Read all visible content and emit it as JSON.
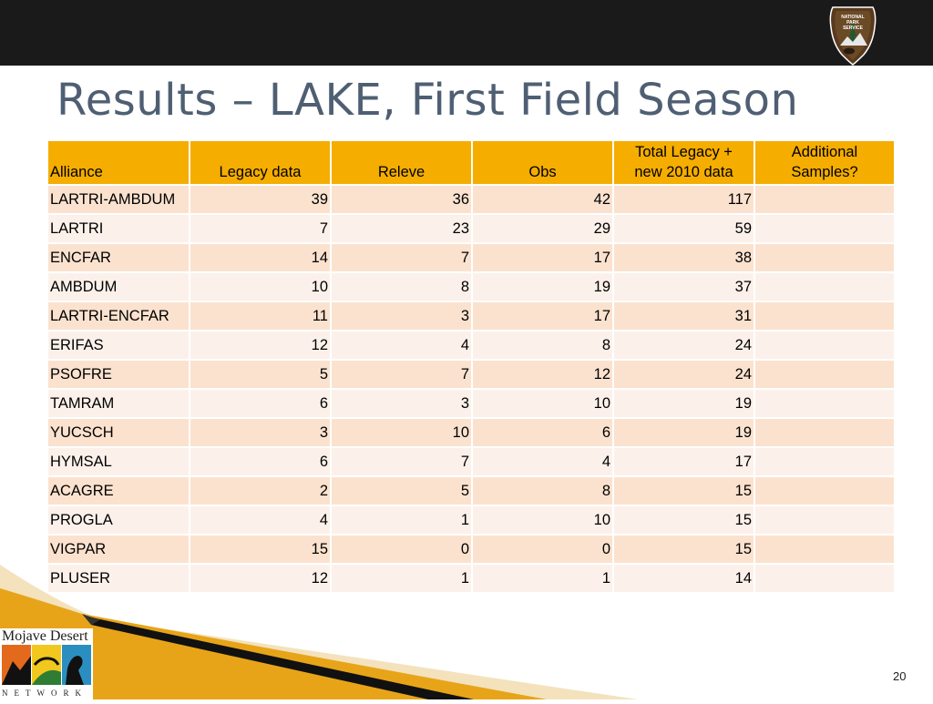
{
  "slide": {
    "title": "Results – LAKE, First Field Season",
    "page_number": "20",
    "nps_badge": {
      "lines": [
        "NATIONAL",
        "PARK",
        "SERVICE"
      ],
      "icon": "arrowhead-icon"
    },
    "logo": {
      "title": "Mojave Desert",
      "subtitle": "NETWORK",
      "icon": "mojave-desert-network-logo"
    }
  },
  "table": {
    "headers": [
      {
        "line1": "",
        "line2": "Alliance"
      },
      {
        "line1": "",
        "line2": "Legacy data"
      },
      {
        "line1": "",
        "line2": "Releve"
      },
      {
        "line1": "",
        "line2": "Obs"
      },
      {
        "line1": "Total Legacy +",
        "line2": "new 2010 data"
      },
      {
        "line1": "Additional",
        "line2": "Samples?"
      }
    ],
    "rows": [
      {
        "alliance": "LARTRI-AMBDUM",
        "legacy": "39",
        "releve": "36",
        "obs": "42",
        "total": "117",
        "additional": ""
      },
      {
        "alliance": "LARTRI",
        "legacy": "7",
        "releve": "23",
        "obs": "29",
        "total": "59",
        "additional": ""
      },
      {
        "alliance": "ENCFAR",
        "legacy": "14",
        "releve": "7",
        "obs": "17",
        "total": "38",
        "additional": ""
      },
      {
        "alliance": "AMBDUM",
        "legacy": "10",
        "releve": "8",
        "obs": "19",
        "total": "37",
        "additional": ""
      },
      {
        "alliance": "LARTRI-ENCFAR",
        "legacy": "11",
        "releve": "3",
        "obs": "17",
        "total": "31",
        "additional": ""
      },
      {
        "alliance": "ERIFAS",
        "legacy": "12",
        "releve": "4",
        "obs": "8",
        "total": "24",
        "additional": ""
      },
      {
        "alliance": "PSOFRE",
        "legacy": "5",
        "releve": "7",
        "obs": "12",
        "total": "24",
        "additional": ""
      },
      {
        "alliance": "TAMRAM",
        "legacy": "6",
        "releve": "3",
        "obs": "10",
        "total": "19",
        "additional": ""
      },
      {
        "alliance": "YUCSCH",
        "legacy": "3",
        "releve": "10",
        "obs": "6",
        "total": "19",
        "additional": ""
      },
      {
        "alliance": "HYMSAL",
        "legacy": "6",
        "releve": "7",
        "obs": "4",
        "total": "17",
        "additional": ""
      },
      {
        "alliance": "ACAGRE",
        "legacy": "2",
        "releve": "5",
        "obs": "8",
        "total": "15",
        "additional": ""
      },
      {
        "alliance": "PROGLA",
        "legacy": "4",
        "releve": "1",
        "obs": "10",
        "total": "15",
        "additional": ""
      },
      {
        "alliance": "VIGPAR",
        "legacy": "15",
        "releve": "0",
        "obs": "0",
        "total": "15",
        "additional": ""
      },
      {
        "alliance": "PLUSER",
        "legacy": "12",
        "releve": "1",
        "obs": "1",
        "total": "14",
        "additional": ""
      }
    ]
  },
  "colors": {
    "top_bar": "#1b1a1a",
    "title": "#4f5f73",
    "header_fill": "#f5ad00",
    "row_odd": "#fbe2cf",
    "row_even": "#fcf1ea",
    "accent_gold": "#e8a418"
  }
}
